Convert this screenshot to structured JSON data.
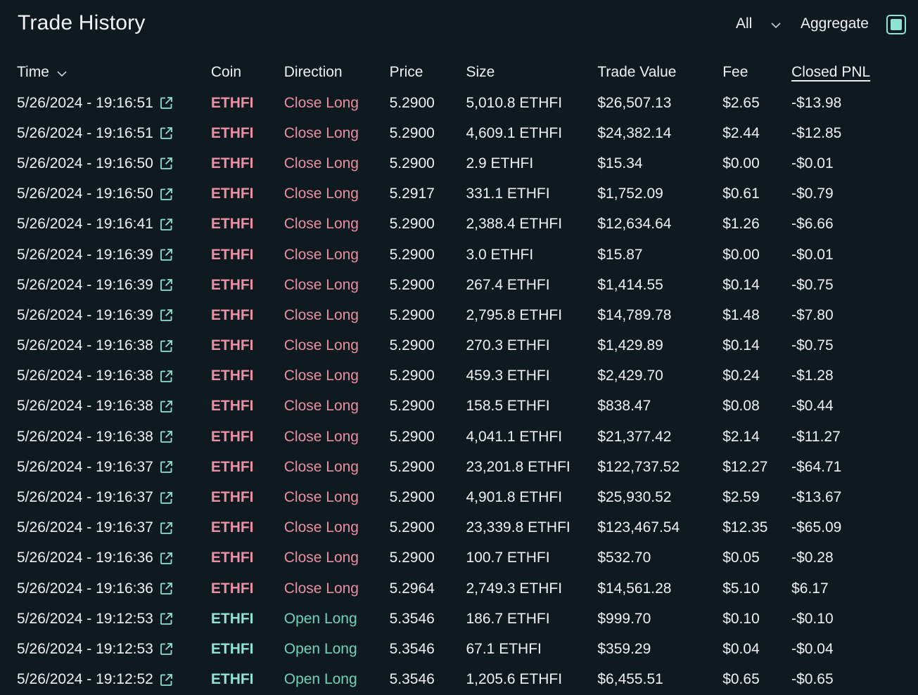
{
  "header": {
    "title": "Trade History",
    "filter_label": "All",
    "aggregate_label": "Aggregate",
    "aggregate_checked": true
  },
  "colors": {
    "background": "#0f1a1f",
    "text": "#ecf1f3",
    "close_direction": "#ea8ea3",
    "open_direction": "#6fd3bc",
    "accent_teal": "#8fe3d0"
  },
  "table": {
    "columns": [
      "Time",
      "Coin",
      "Direction",
      "Price",
      "Size",
      "Trade Value",
      "Fee",
      "Closed PNL"
    ],
    "rows": [
      {
        "time": "5/26/2024 - 19:16:51",
        "coin": "ETHFI",
        "direction": "Close Long",
        "price": "5.2900",
        "size": "5,010.8 ETHFI",
        "value": "$26,507.13",
        "fee": "$2.65",
        "pnl": "-$13.98"
      },
      {
        "time": "5/26/2024 - 19:16:51",
        "coin": "ETHFI",
        "direction": "Close Long",
        "price": "5.2900",
        "size": "4,609.1 ETHFI",
        "value": "$24,382.14",
        "fee": "$2.44",
        "pnl": "-$12.85"
      },
      {
        "time": "5/26/2024 - 19:16:50",
        "coin": "ETHFI",
        "direction": "Close Long",
        "price": "5.2900",
        "size": "2.9 ETHFI",
        "value": "$15.34",
        "fee": "$0.00",
        "pnl": "-$0.01"
      },
      {
        "time": "5/26/2024 - 19:16:50",
        "coin": "ETHFI",
        "direction": "Close Long",
        "price": "5.2917",
        "size": "331.1 ETHFI",
        "value": "$1,752.09",
        "fee": "$0.61",
        "pnl": "-$0.79"
      },
      {
        "time": "5/26/2024 - 19:16:41",
        "coin": "ETHFI",
        "direction": "Close Long",
        "price": "5.2900",
        "size": "2,388.4 ETHFI",
        "value": "$12,634.64",
        "fee": "$1.26",
        "pnl": "-$6.66"
      },
      {
        "time": "5/26/2024 - 19:16:39",
        "coin": "ETHFI",
        "direction": "Close Long",
        "price": "5.2900",
        "size": "3.0 ETHFI",
        "value": "$15.87",
        "fee": "$0.00",
        "pnl": "-$0.01"
      },
      {
        "time": "5/26/2024 - 19:16:39",
        "coin": "ETHFI",
        "direction": "Close Long",
        "price": "5.2900",
        "size": "267.4 ETHFI",
        "value": "$1,414.55",
        "fee": "$0.14",
        "pnl": "-$0.75"
      },
      {
        "time": "5/26/2024 - 19:16:39",
        "coin": "ETHFI",
        "direction": "Close Long",
        "price": "5.2900",
        "size": "2,795.8 ETHFI",
        "value": "$14,789.78",
        "fee": "$1.48",
        "pnl": "-$7.80"
      },
      {
        "time": "5/26/2024 - 19:16:38",
        "coin": "ETHFI",
        "direction": "Close Long",
        "price": "5.2900",
        "size": "270.3 ETHFI",
        "value": "$1,429.89",
        "fee": "$0.14",
        "pnl": "-$0.75"
      },
      {
        "time": "5/26/2024 - 19:16:38",
        "coin": "ETHFI",
        "direction": "Close Long",
        "price": "5.2900",
        "size": "459.3 ETHFI",
        "value": "$2,429.70",
        "fee": "$0.24",
        "pnl": "-$1.28"
      },
      {
        "time": "5/26/2024 - 19:16:38",
        "coin": "ETHFI",
        "direction": "Close Long",
        "price": "5.2900",
        "size": "158.5 ETHFI",
        "value": "$838.47",
        "fee": "$0.08",
        "pnl": "-$0.44"
      },
      {
        "time": "5/26/2024 - 19:16:38",
        "coin": "ETHFI",
        "direction": "Close Long",
        "price": "5.2900",
        "size": "4,041.1 ETHFI",
        "value": "$21,377.42",
        "fee": "$2.14",
        "pnl": "-$11.27"
      },
      {
        "time": "5/26/2024 - 19:16:37",
        "coin": "ETHFI",
        "direction": "Close Long",
        "price": "5.2900",
        "size": "23,201.8 ETHFI",
        "value": "$122,737.52",
        "fee": "$12.27",
        "pnl": "-$64.71"
      },
      {
        "time": "5/26/2024 - 19:16:37",
        "coin": "ETHFI",
        "direction": "Close Long",
        "price": "5.2900",
        "size": "4,901.8 ETHFI",
        "value": "$25,930.52",
        "fee": "$2.59",
        "pnl": "-$13.67"
      },
      {
        "time": "5/26/2024 - 19:16:37",
        "coin": "ETHFI",
        "direction": "Close Long",
        "price": "5.2900",
        "size": "23,339.8 ETHFI",
        "value": "$123,467.54",
        "fee": "$12.35",
        "pnl": "-$65.09"
      },
      {
        "time": "5/26/2024 - 19:16:36",
        "coin": "ETHFI",
        "direction": "Close Long",
        "price": "5.2900",
        "size": "100.7 ETHFI",
        "value": "$532.70",
        "fee": "$0.05",
        "pnl": "-$0.28"
      },
      {
        "time": "5/26/2024 - 19:16:36",
        "coin": "ETHFI",
        "direction": "Close Long",
        "price": "5.2964",
        "size": "2,749.3 ETHFI",
        "value": "$14,561.28",
        "fee": "$5.10",
        "pnl": "$6.17"
      },
      {
        "time": "5/26/2024 - 19:12:53",
        "coin": "ETHFI",
        "direction": "Open Long",
        "price": "5.3546",
        "size": "186.7 ETHFI",
        "value": "$999.70",
        "fee": "$0.10",
        "pnl": "-$0.10"
      },
      {
        "time": "5/26/2024 - 19:12:53",
        "coin": "ETHFI",
        "direction": "Open Long",
        "price": "5.3546",
        "size": "67.1 ETHFI",
        "value": "$359.29",
        "fee": "$0.04",
        "pnl": "-$0.04"
      },
      {
        "time": "5/26/2024 - 19:12:52",
        "coin": "ETHFI",
        "direction": "Open Long",
        "price": "5.3546",
        "size": "1,205.6 ETHFI",
        "value": "$6,455.51",
        "fee": "$0.65",
        "pnl": "-$0.65"
      }
    ]
  }
}
